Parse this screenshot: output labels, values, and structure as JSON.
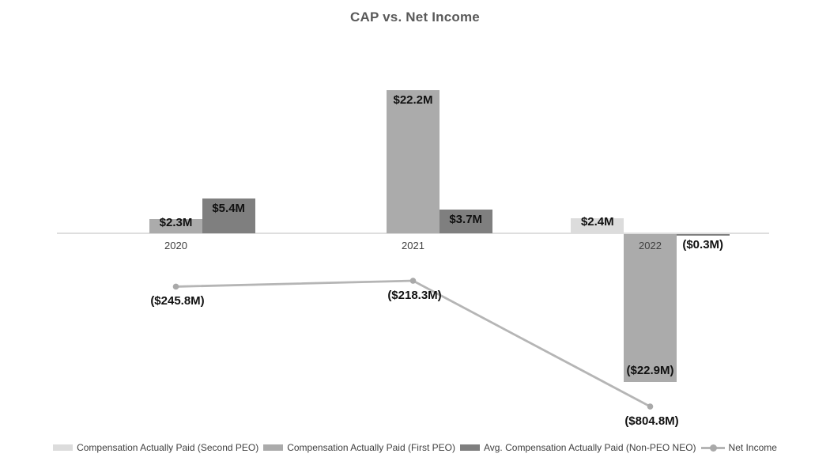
{
  "title": "CAP vs. Net Income",
  "chart_data": {
    "type": "combo_bar_line",
    "title": "CAP vs. Net Income",
    "categories": [
      "2020",
      "2021",
      "2022"
    ],
    "value_unit": "USD millions",
    "gridlines": false,
    "y_axis_labels_visible": false,
    "legend_position": "bottom",
    "series": [
      {
        "key": "second-peo",
        "name": "Compensation Actually Paid (Second PEO)",
        "type": "bar",
        "color": "#dcdcdc",
        "values": [
          null,
          null,
          2.4
        ],
        "labels": [
          null,
          null,
          "$2.4M"
        ]
      },
      {
        "key": "first-peo",
        "name": "Compensation Actually Paid (First PEO)",
        "type": "bar",
        "color": "#ababab",
        "values": [
          2.3,
          22.2,
          -22.9
        ],
        "labels": [
          "$2.3M",
          "$22.2M",
          "($22.9M)"
        ]
      },
      {
        "key": "non-peo-neo",
        "name": "Avg. Compensation Actually Paid (Non-PEO NEO)",
        "type": "bar",
        "color": "#7f7f7f",
        "values": [
          5.4,
          3.7,
          -0.3
        ],
        "labels": [
          "$5.4M",
          "$3.7M",
          "($0.3M)"
        ]
      },
      {
        "key": "net-income",
        "name": "Net Income",
        "type": "line",
        "color": "#b5b5b5",
        "marker_color": "#a9a9a9",
        "values": [
          -245.8,
          -218.3,
          -804.8
        ],
        "labels": [
          "($245.8M)",
          "($218.3M)",
          "($804.8M)"
        ]
      }
    ]
  },
  "colors": {
    "background": "#ffffff",
    "title_text": "#595959",
    "data_label_text": "#111111",
    "category_label_text": "#3f3f3f",
    "legend_text": "#404040",
    "axis_line": "#dedede"
  }
}
